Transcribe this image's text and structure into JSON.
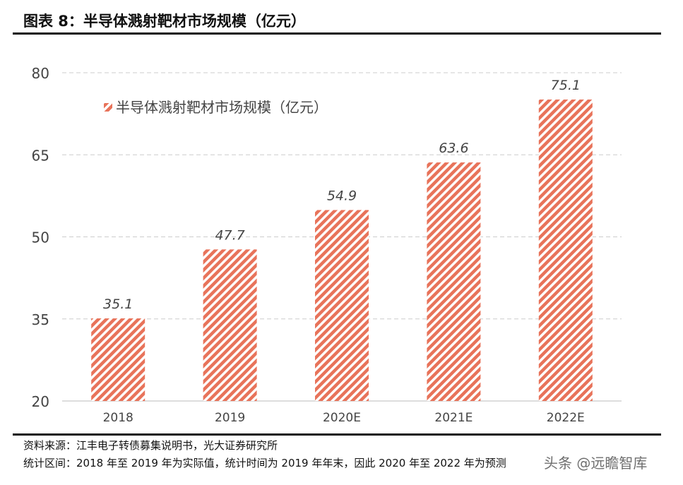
{
  "title": "图表 8：半导体溅射靶材市场规模（亿元）",
  "chart_data": {
    "type": "bar",
    "categories": [
      "2018",
      "2019",
      "2020E",
      "2021E",
      "2022E"
    ],
    "series": [
      {
        "name": "半导体溅射靶材市场规模（亿元）",
        "values": [
          35.1,
          47.7,
          54.9,
          63.6,
          75.1
        ]
      }
    ],
    "ylim": [
      20,
      80
    ],
    "yticks": [
      "20",
      "35",
      "50",
      "65",
      "80"
    ],
    "grid": true,
    "legend_position": "top-left",
    "bar_color": "#e8735a",
    "pattern": "diagonal-hatch"
  },
  "footer": {
    "source": "资料来源：江丰电子转债募集说明书，光大证券研究所",
    "note": "统计区间：2018 年至 2019 年为实际值，统计时间为 2019 年年末，因此 2020 年至 2022 年为预测"
  },
  "watermark": "头条 @远瞻智库"
}
